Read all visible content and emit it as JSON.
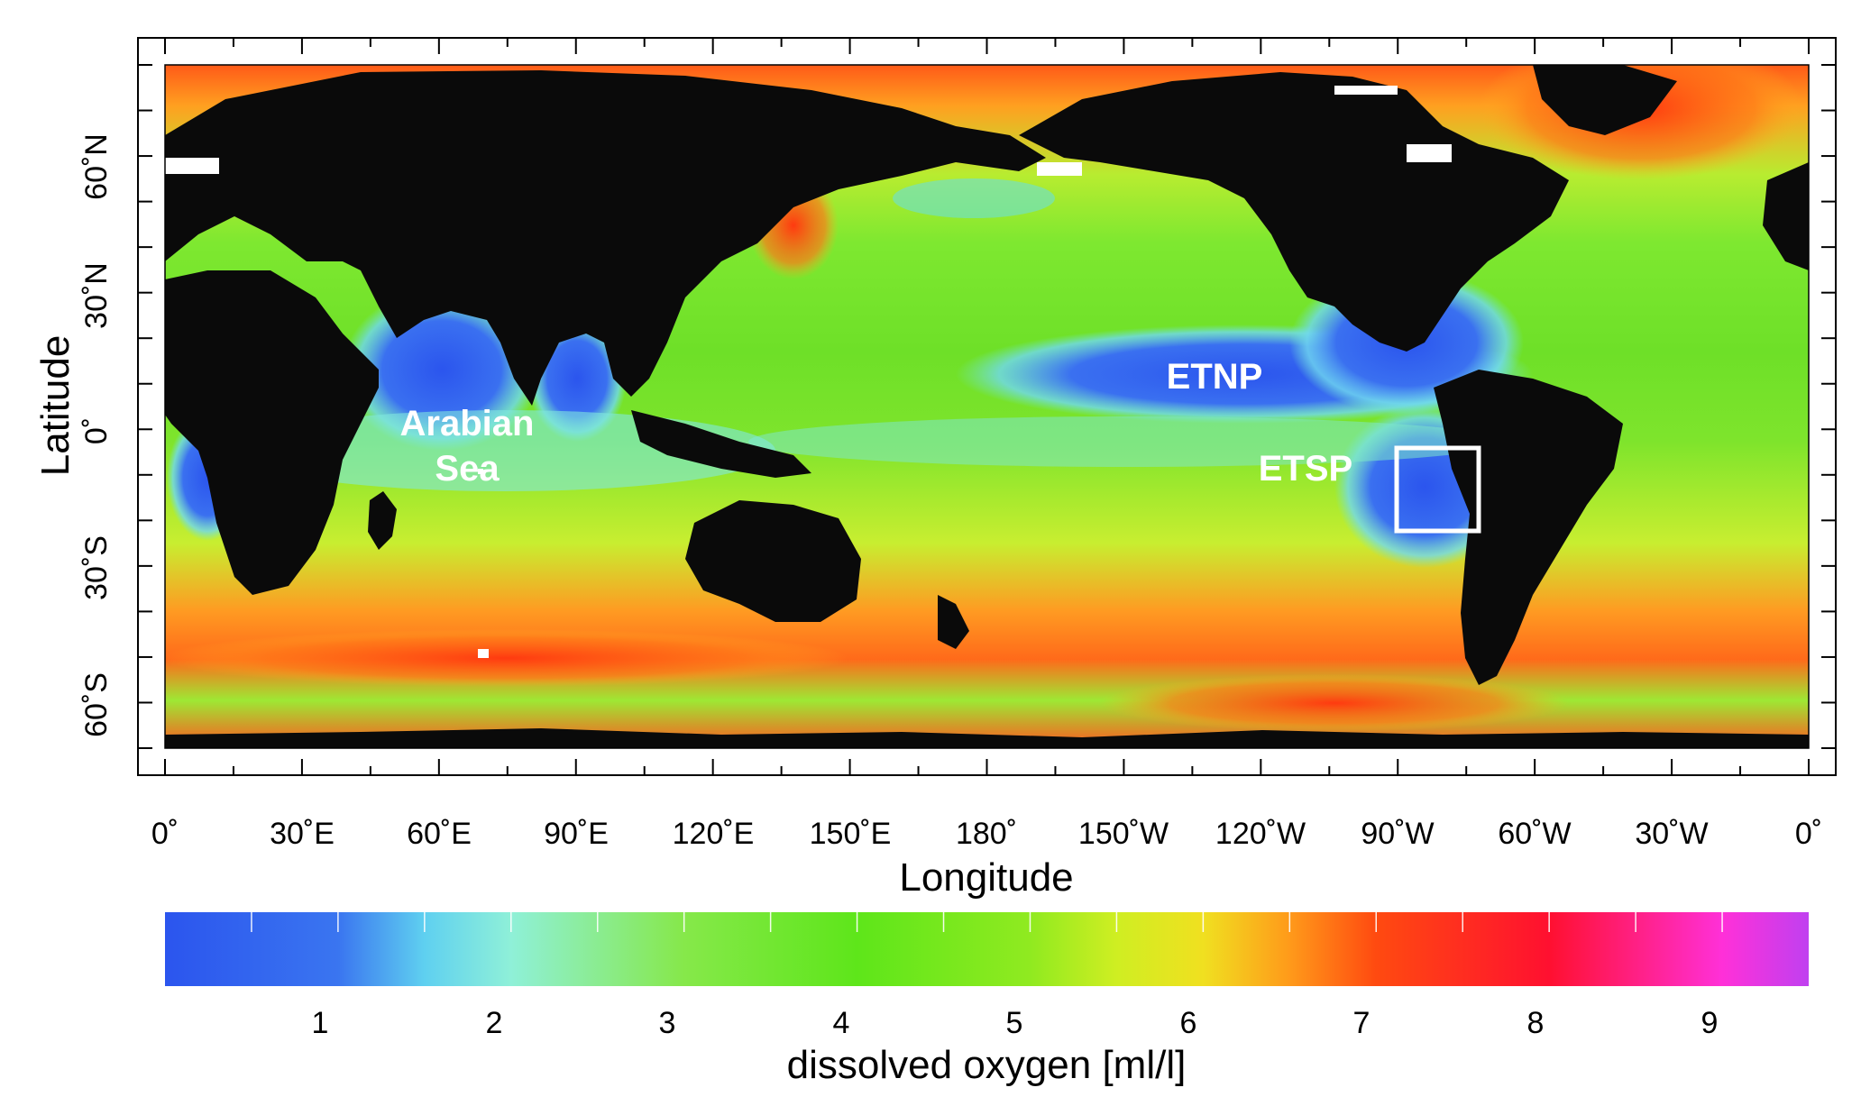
{
  "map": {
    "xlabel": "Longitude",
    "ylabel": "Latitude",
    "x_ticks": [
      "0˚",
      "30˚E",
      "60˚E",
      "90˚E",
      "120˚E",
      "150˚E",
      "180˚",
      "150˚W",
      "120˚W",
      "90˚W",
      "60˚W",
      "30˚W",
      "0˚"
    ],
    "y_ticks": [
      "60˚N",
      "30˚N",
      "0˚",
      "30˚S",
      "60˚S"
    ],
    "region_labels": [
      {
        "text": "Arabian",
        "color": "#ffffff"
      },
      {
        "text": "Sea",
        "color": "#ffffff"
      },
      {
        "text": "ETNP",
        "color": "#ffffff"
      },
      {
        "text": "ETSP",
        "color": "#ffffff"
      }
    ],
    "colors": {
      "land": "#0a0a0a",
      "no_data": "#ffffff",
      "ocean_base": "#66dd22",
      "omz": "#2f5be8"
    }
  },
  "colorbar": {
    "label": "dissolved oxygen [ml/l]",
    "ticks": [
      "1",
      "2",
      "3",
      "4",
      "5",
      "6",
      "7",
      "8",
      "9"
    ],
    "stops": [
      {
        "value": 0.0,
        "color": "#2b55ee"
      },
      {
        "value": 1.0,
        "color": "#3a75f0"
      },
      {
        "value": 1.5,
        "color": "#5fd0f0"
      },
      {
        "value": 2.0,
        "color": "#8ff0d8"
      },
      {
        "value": 3.0,
        "color": "#86e84a"
      },
      {
        "value": 4.0,
        "color": "#5ee61a"
      },
      {
        "value": 5.0,
        "color": "#90ea20"
      },
      {
        "value": 5.5,
        "color": "#cfee22"
      },
      {
        "value": 6.0,
        "color": "#f0e020"
      },
      {
        "value": 6.5,
        "color": "#ff9a1a"
      },
      {
        "value": 7.0,
        "color": "#ff4a10"
      },
      {
        "value": 8.0,
        "color": "#ff1030"
      },
      {
        "value": 9.0,
        "color": "#ff30d8"
      },
      {
        "value": 9.5,
        "color": "#c040f0"
      }
    ]
  }
}
